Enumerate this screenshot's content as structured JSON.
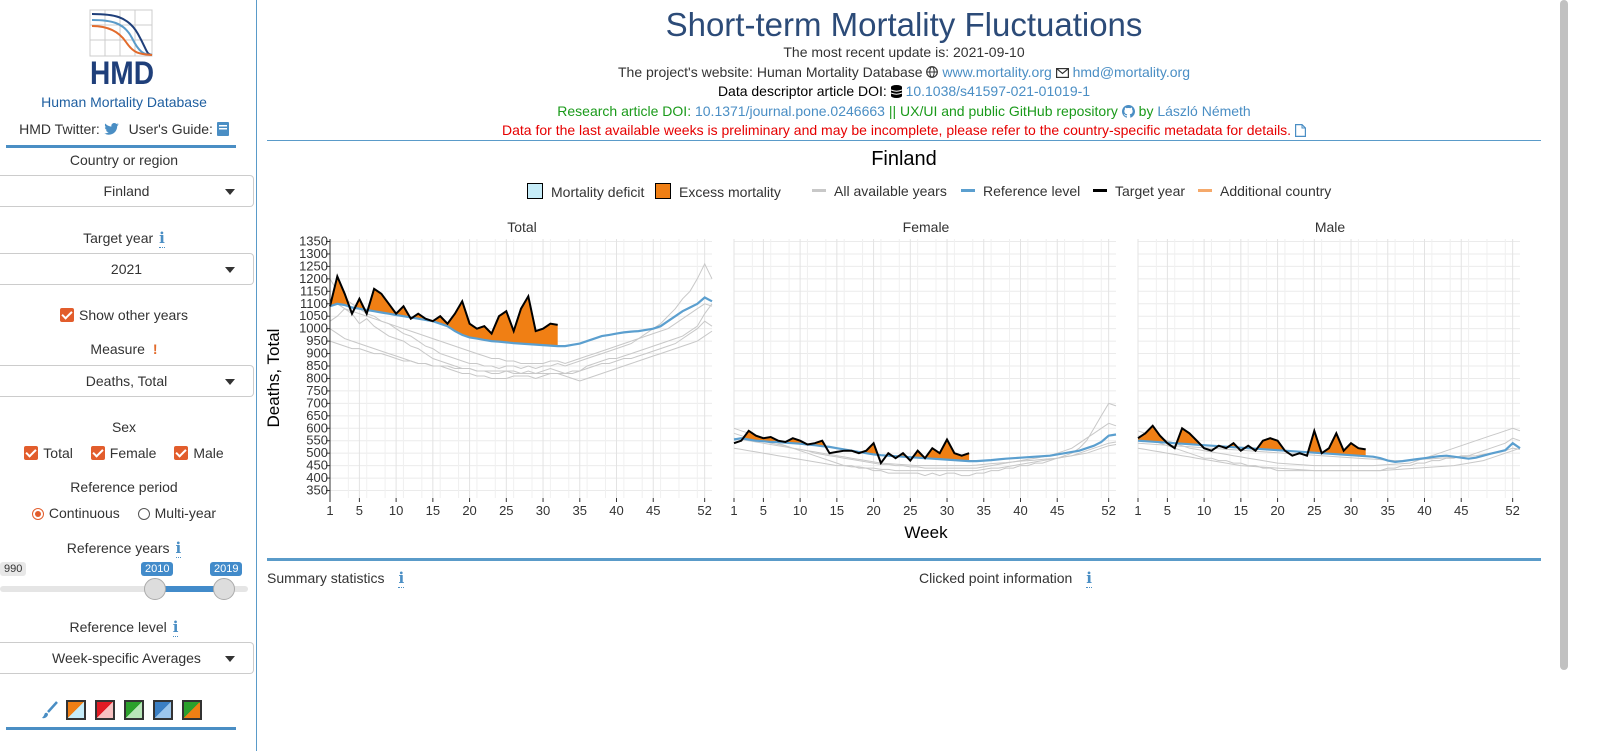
{
  "sidebar": {
    "logo_text": "HMD",
    "site_name": "Human Mortality Database",
    "twitter_label": "HMD Twitter:",
    "guide_label": "User's Guide:",
    "country_label": "Country or region",
    "country_value": "Finland",
    "target_year_label": "Target year",
    "target_year_value": "2021",
    "show_other_years_label": "Show other years",
    "measure_label": "Measure",
    "measure_value": "Deaths, Total",
    "sex_label": "Sex",
    "sex_options": [
      "Total",
      "Female",
      "Male"
    ],
    "ref_period_label": "Reference period",
    "ref_period_options": [
      "Continuous",
      "Multi-year"
    ],
    "ref_years_label": "Reference years",
    "ref_years_min": "990",
    "ref_years_from": "2010",
    "ref_years_to": "2019",
    "ref_level_label": "Reference level",
    "ref_level_value": "Week-specific Averages",
    "info_glyph": "i",
    "warn_glyph": "!"
  },
  "header": {
    "title": "Short-term Mortality Fluctuations",
    "update": "The most recent update is: 2021-09-10",
    "website_prefix": "The project's website: Human Mortality Database",
    "website_link": "www.mortality.org",
    "email_link": "hmd@mortality.org",
    "doi_prefix": "Data descriptor article DOI:",
    "doi_link": "10.1038/s41597-021-01019-1",
    "research_prefix": "Research article DOI:",
    "research_link": "10.1371/journal.pone.0246663",
    "research_mid": "|| UX/UI and public GitHub repository",
    "research_by": "by",
    "author_link": "László Németh",
    "warning": "Data for the last available weeks is preliminary and may be incomplete, please refer to the country-specific metadata for details."
  },
  "colors": {
    "accent": "#4a8ec4",
    "excess": "#f07f14",
    "deficit": "#c6ecf8",
    "reference": "#5b9fcf",
    "target": "#000000",
    "others": "#c8c8c8",
    "additional": "#f5a96b"
  },
  "legend": {
    "deficit": "Mortality deficit",
    "excess": "Excess mortality",
    "all_years": "All available years",
    "reference": "Reference level",
    "target": "Target year",
    "additional": "Additional country"
  },
  "bottom": {
    "summary": "Summary statistics",
    "clicked": "Clicked point information"
  },
  "chart_data": {
    "type": "line",
    "title": "Finland",
    "xlabel": "Week",
    "ylabel": "Deaths, Total",
    "x_ticks": [
      1,
      5,
      10,
      15,
      20,
      25,
      30,
      35,
      40,
      45,
      52
    ],
    "y_ticks": [
      350,
      400,
      450,
      500,
      550,
      600,
      650,
      700,
      750,
      800,
      850,
      900,
      950,
      1000,
      1050,
      1100,
      1150,
      1200,
      1250,
      1300,
      1350
    ],
    "xlim": [
      1,
      53
    ],
    "ylim": [
      320,
      1360
    ],
    "panels": [
      {
        "name": "Total",
        "reference": [
          1090,
          1100,
          1095,
          1085,
          1080,
          1075,
          1070,
          1065,
          1060,
          1055,
          1050,
          1045,
          1040,
          1035,
          1030,
          1020,
          1010,
          990,
          975,
          965,
          960,
          955,
          950,
          948,
          945,
          942,
          940,
          938,
          936,
          934,
          932,
          930,
          930,
          935,
          940,
          950,
          960,
          970,
          975,
          980,
          985,
          988,
          990,
          995,
          1000,
          1010,
          1030,
          1050,
          1070,
          1085,
          1100,
          1125,
          1110
        ],
        "target": [
          1090,
          1210,
          1140,
          1060,
          1120,
          1060,
          1160,
          1140,
          1100,
          1060,
          1090,
          1040,
          1060,
          1040,
          1030,
          1050,
          1020,
          1060,
          1110,
          1020,
          1000,
          1010,
          980,
          1050,
          1070,
          990,
          1080,
          1130,
          990,
          1000,
          1020,
          1015
        ],
        "other_years": [
          [
            1030,
            1050,
            1080,
            1060,
            1020,
            1040,
            1010,
            990,
            970,
            960,
            950,
            930,
            920,
            900,
            880,
            870,
            860,
            850,
            840,
            840,
            830,
            830,
            820,
            820,
            830,
            830,
            820,
            830,
            820,
            830,
            840,
            830,
            820,
            820,
            830,
            850,
            860,
            870,
            880,
            880,
            890,
            900,
            910,
            920,
            930,
            940,
            950,
            960,
            970,
            990,
            1010,
            1060,
            1100
          ],
          [
            1200,
            1150,
            1120,
            1100,
            1080,
            1060,
            1050,
            1030,
            1020,
            1000,
            980,
            970,
            950,
            930,
            920,
            900,
            890,
            880,
            870,
            860,
            860,
            850,
            850,
            840,
            850,
            850,
            840,
            850,
            840,
            850,
            850,
            860,
            850,
            860,
            870,
            880,
            890,
            900,
            910,
            920,
            930,
            940,
            960,
            980,
            1000,
            1020,
            1050,
            1080,
            1120,
            1150,
            1200,
            1260,
            1200
          ],
          [
            1000,
            980,
            960,
            950,
            940,
            930,
            920,
            910,
            900,
            890,
            880,
            870,
            860,
            860,
            850,
            850,
            840,
            830,
            820,
            820,
            810,
            810,
            800,
            800,
            800,
            810,
            810,
            810,
            800,
            810,
            820,
            820,
            810,
            800,
            790,
            800,
            810,
            820,
            830,
            840,
            850,
            860,
            870,
            880,
            890,
            900,
            910,
            920,
            930,
            940,
            950,
            970,
            990
          ],
          [
            1120,
            1100,
            1080,
            1070,
            1060,
            1050,
            1040,
            1030,
            1020,
            1010,
            1000,
            990,
            980,
            970,
            960,
            950,
            940,
            930,
            920,
            910,
            900,
            890,
            880,
            880,
            870,
            870,
            860,
            860,
            860,
            860,
            870,
            870,
            860,
            870,
            880,
            890,
            900,
            910,
            920,
            930,
            940,
            950,
            960,
            970,
            980,
            990,
            1000,
            1020,
            1040,
            1060,
            1080,
            1100,
            1090
          ],
          [
            950,
            940,
            930,
            920,
            920,
            910,
            900,
            900,
            890,
            880,
            870,
            870,
            860,
            860,
            850,
            850,
            850,
            840,
            840,
            840,
            830,
            830,
            830,
            830,
            830,
            820,
            820,
            820,
            820,
            820,
            820,
            820,
            820,
            830,
            830,
            840,
            850,
            860,
            860,
            870,
            880,
            880,
            890,
            900,
            910,
            920,
            930,
            940,
            960,
            980,
            1000,
            1030,
            1010
          ]
        ]
      },
      {
        "name": "Female",
        "reference": [
          555,
          560,
          555,
          550,
          548,
          545,
          545,
          542,
          540,
          538,
          535,
          532,
          528,
          525,
          520,
          515,
          510,
          505,
          500,
          495,
          492,
          490,
          488,
          486,
          484,
          482,
          480,
          478,
          476,
          474,
          472,
          470,
          468,
          468,
          470,
          472,
          475,
          478,
          480,
          482,
          484,
          486,
          488,
          490,
          495,
          500,
          505,
          510,
          520,
          530,
          545,
          570,
          575
        ],
        "target": [
          540,
          550,
          590,
          570,
          560,
          565,
          550,
          545,
          560,
          550,
          535,
          540,
          550,
          500,
          505,
          510,
          510,
          500,
          510,
          540,
          460,
          500,
          480,
          500,
          470,
          510,
          480,
          520,
          500,
          555,
          500,
          490,
          500
        ],
        "other_years": [
          [
            600,
            590,
            580,
            570,
            560,
            550,
            540,
            530,
            520,
            510,
            500,
            490,
            480,
            470,
            460,
            450,
            450,
            440,
            440,
            430,
            430,
            420,
            420,
            420,
            420,
            420,
            410,
            420,
            410,
            420,
            420,
            410,
            410,
            420,
            420,
            430,
            430,
            440,
            440,
            450,
            450,
            460,
            460,
            470,
            480,
            490,
            500,
            520,
            550,
            600,
            650,
            700,
            690
          ],
          [
            520,
            515,
            510,
            505,
            500,
            495,
            490,
            485,
            480,
            475,
            470,
            465,
            460,
            455,
            450,
            450,
            445,
            445,
            440,
            440,
            435,
            435,
            430,
            430,
            430,
            430,
            430,
            430,
            430,
            430,
            430,
            430,
            430,
            430,
            435,
            440,
            440,
            445,
            450,
            455,
            460,
            465,
            470,
            475,
            480,
            485,
            490,
            500,
            510,
            520,
            530,
            540,
            545
          ],
          [
            580,
            570,
            560,
            555,
            550,
            540,
            535,
            530,
            520,
            515,
            510,
            500,
            495,
            490,
            485,
            480,
            475,
            470,
            465,
            460,
            455,
            455,
            450,
            450,
            445,
            445,
            440,
            440,
            440,
            440,
            440,
            440,
            440,
            440,
            445,
            450,
            455,
            460,
            465,
            470,
            475,
            480,
            485,
            490,
            500,
            510,
            520,
            540,
            560,
            580,
            600,
            620,
            610
          ],
          [
            560,
            555,
            550,
            545,
            540,
            535,
            530,
            525,
            520,
            515,
            510,
            505,
            500,
            495,
            490,
            485,
            480,
            475,
            470,
            465,
            460,
            458,
            456,
            454,
            452,
            450,
            450,
            450,
            450,
            450,
            450,
            450,
            450,
            452,
            455,
            458,
            460,
            462,
            465,
            468,
            470,
            472,
            475,
            478,
            480,
            485,
            490,
            495,
            500,
            510,
            520,
            530,
            535
          ]
        ]
      },
      {
        "name": "Male",
        "reference": [
          550,
          548,
          546,
          544,
          542,
          540,
          538,
          536,
          534,
          532,
          530,
          528,
          526,
          524,
          522,
          520,
          518,
          516,
          514,
          512,
          510,
          508,
          506,
          504,
          502,
          500,
          498,
          496,
          494,
          492,
          490,
          488,
          486,
          480,
          470,
          465,
          468,
          472,
          476,
          480,
          484,
          488,
          490,
          486,
          482,
          478,
          482,
          490,
          498,
          505,
          512,
          540,
          520
        ],
        "target": [
          560,
          580,
          610,
          570,
          540,
          520,
          600,
          580,
          550,
          520,
          510,
          530,
          520,
          540,
          510,
          530,
          510,
          550,
          560,
          550,
          510,
          490,
          500,
          490,
          590,
          500,
          520,
          580,
          510,
          540,
          520,
          515
        ],
        "other_years": [
          [
            570,
            560,
            550,
            540,
            530,
            520,
            510,
            500,
            490,
            480,
            480,
            470,
            470,
            460,
            460,
            450,
            450,
            440,
            440,
            430,
            430,
            430,
            430,
            430,
            430,
            430,
            430,
            430,
            430,
            430,
            430,
            430,
            430,
            430,
            440,
            440,
            450,
            450,
            460,
            460,
            470,
            470,
            480,
            480,
            490,
            490,
            500,
            510,
            520,
            530,
            540,
            560,
            550
          ],
          [
            520,
            515,
            510,
            505,
            500,
            495,
            490,
            485,
            480,
            475,
            470,
            465,
            460,
            455,
            450,
            448,
            446,
            444,
            442,
            440,
            438,
            436,
            434,
            432,
            430,
            430,
            430,
            430,
            430,
            430,
            430,
            430,
            430,
            430,
            432,
            434,
            436,
            438,
            440,
            442,
            444,
            446,
            448,
            450,
            455,
            460,
            465,
            470,
            480,
            490,
            500,
            510,
            520
          ],
          [
            590,
            580,
            570,
            560,
            550,
            540,
            530,
            520,
            515,
            510,
            505,
            500,
            495,
            490,
            485,
            480,
            475,
            470,
            465,
            460,
            458,
            456,
            454,
            452,
            450,
            450,
            450,
            450,
            450,
            450,
            450,
            450,
            450,
            452,
            454,
            456,
            458,
            460,
            470,
            480,
            490,
            500,
            510,
            520,
            530,
            540,
            550,
            560,
            570,
            580,
            590,
            600,
            590
          ],
          [
            540,
            538,
            536,
            534,
            532,
            530,
            528,
            526,
            524,
            522,
            520,
            518,
            516,
            514,
            512,
            510,
            508,
            506,
            504,
            502,
            500,
            498,
            496,
            494,
            492,
            490,
            488,
            486,
            484,
            482,
            480,
            478,
            476,
            474,
            472,
            470,
            470,
            472,
            474,
            476,
            478,
            480,
            482,
            484,
            486,
            488,
            490,
            495,
            500,
            505,
            510,
            520,
            515
          ]
        ]
      }
    ]
  }
}
